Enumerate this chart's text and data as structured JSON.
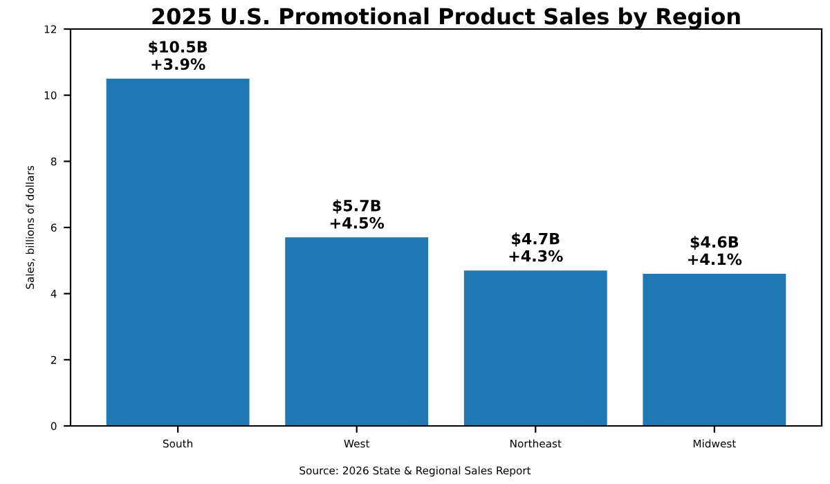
{
  "chart_data": {
    "type": "bar",
    "title": "2025 U.S. Promotional Product Sales by Region",
    "ylabel": "Sales, billions of dollars",
    "categories": [
      "South",
      "West",
      "Northeast",
      "Midwest"
    ],
    "values": [
      10.5,
      5.7,
      4.7,
      4.6
    ],
    "value_labels": [
      "$10.5B",
      "$5.7B",
      "$4.7B",
      "$4.6B"
    ],
    "color": "#1f77b4",
    "ylim": [
      0,
      12
    ],
    "yticks": [
      0,
      2,
      4,
      6,
      8,
      10,
      12
    ],
    "annotations": [
      {
        "text": "+3.9%",
        "x": "South",
        "y": 10.5
      },
      {
        "text": "+4.5%",
        "x": "West",
        "y": 5.7
      },
      {
        "text": "+4.3%",
        "x": "Northeast",
        "y": 4.7
      },
      {
        "text": "+4.1%",
        "x": "Midwest",
        "y": 4.6
      },
      "Source: 2026 State & Regional Sales Report"
    ]
  }
}
